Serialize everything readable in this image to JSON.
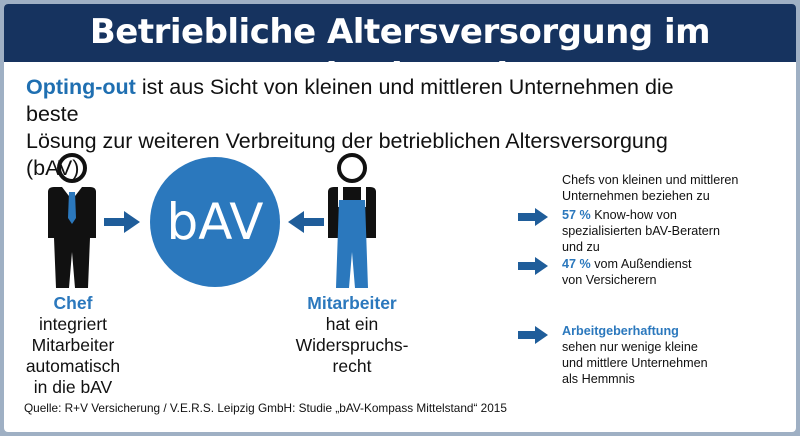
{
  "header": {
    "title": "Betriebliche Altersversorgung im Mittelstand"
  },
  "subtitle": {
    "highlight": "Opting-out",
    "line1_rest": " ist aus Sicht von kleinen und mittleren Unternehmen die beste",
    "line2": "Lösung zur weiteren Verbreitung der betrieblichen Altersversorgung (bAV)"
  },
  "center": {
    "circle_label": "bAV"
  },
  "chef": {
    "title": "Chef",
    "lines": [
      "integriert",
      "Mitarbeiter",
      "automatisch",
      "in die bAV"
    ]
  },
  "mitarbeiter": {
    "title": "Mitarbeiter",
    "lines": [
      "hat ein",
      "Widerspruchs-",
      "recht"
    ]
  },
  "right": {
    "intro": [
      "Chefs von kleinen und mittleren",
      "Unternehmen beziehen zu"
    ],
    "item1": {
      "percent": "57 %",
      "lines": [
        " Know-how von",
        "spezialisierten bAV-Beratern",
        "und zu"
      ]
    },
    "item2": {
      "percent": "47 %",
      "lines": [
        " vom Außendienst",
        "von Versicherern"
      ]
    },
    "item3": {
      "title": "Arbeitgeberhaftung",
      "lines": [
        "sehen nur wenige kleine",
        "und mittlere Unternehmen",
        "als Hemmnis"
      ]
    }
  },
  "source": "Quelle: R+V Versicherung / V.E.R.S. Leipzig GmbH: Studie „bAV-Kompass Mittelstand“ 2015",
  "colors": {
    "header_bg": "#16335f",
    "accent_blue": "#2b78bd",
    "arrow_blue": "#1f5d9a",
    "frame": "#9fb0c4"
  },
  "icons": {
    "chef": "businessman-icon",
    "worker": "worker-overalls-icon",
    "arrow": "arrow-right-icon"
  }
}
